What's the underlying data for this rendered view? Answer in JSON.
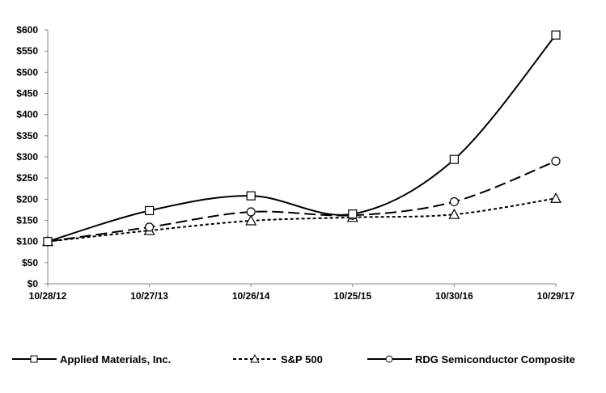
{
  "chart_data": {
    "type": "line",
    "title": "",
    "xlabel": "",
    "ylabel": "",
    "categories": [
      "10/28/12",
      "10/27/13",
      "10/26/14",
      "10/25/15",
      "10/30/16",
      "10/29/17"
    ],
    "ylim": [
      0,
      600
    ],
    "yticks": [
      0,
      50,
      100,
      150,
      200,
      250,
      300,
      350,
      400,
      450,
      500,
      550,
      600
    ],
    "ytick_labels": [
      "$0",
      "$50",
      "$100",
      "$150",
      "$200",
      "$250",
      "$300",
      "$350",
      "$400",
      "$450",
      "$500",
      "$550",
      "$600"
    ],
    "grid": false,
    "legend_position": "bottom",
    "smooth": true,
    "series": [
      {
        "name": "Applied Materials, Inc.",
        "marker": "square",
        "dash": "solid",
        "color": "#000000",
        "values": [
          100,
          173,
          208,
          165,
          294,
          588
        ]
      },
      {
        "name": "S&P 500",
        "marker": "triangle",
        "dash": "short-dash",
        "color": "#000000",
        "values": [
          100,
          126,
          149,
          157,
          164,
          202
        ]
      },
      {
        "name": "RDG Semiconductor Composite",
        "marker": "circle",
        "dash": "long-dash",
        "color": "#000000",
        "values": [
          100,
          134,
          170,
          162,
          194,
          290
        ]
      }
    ]
  }
}
